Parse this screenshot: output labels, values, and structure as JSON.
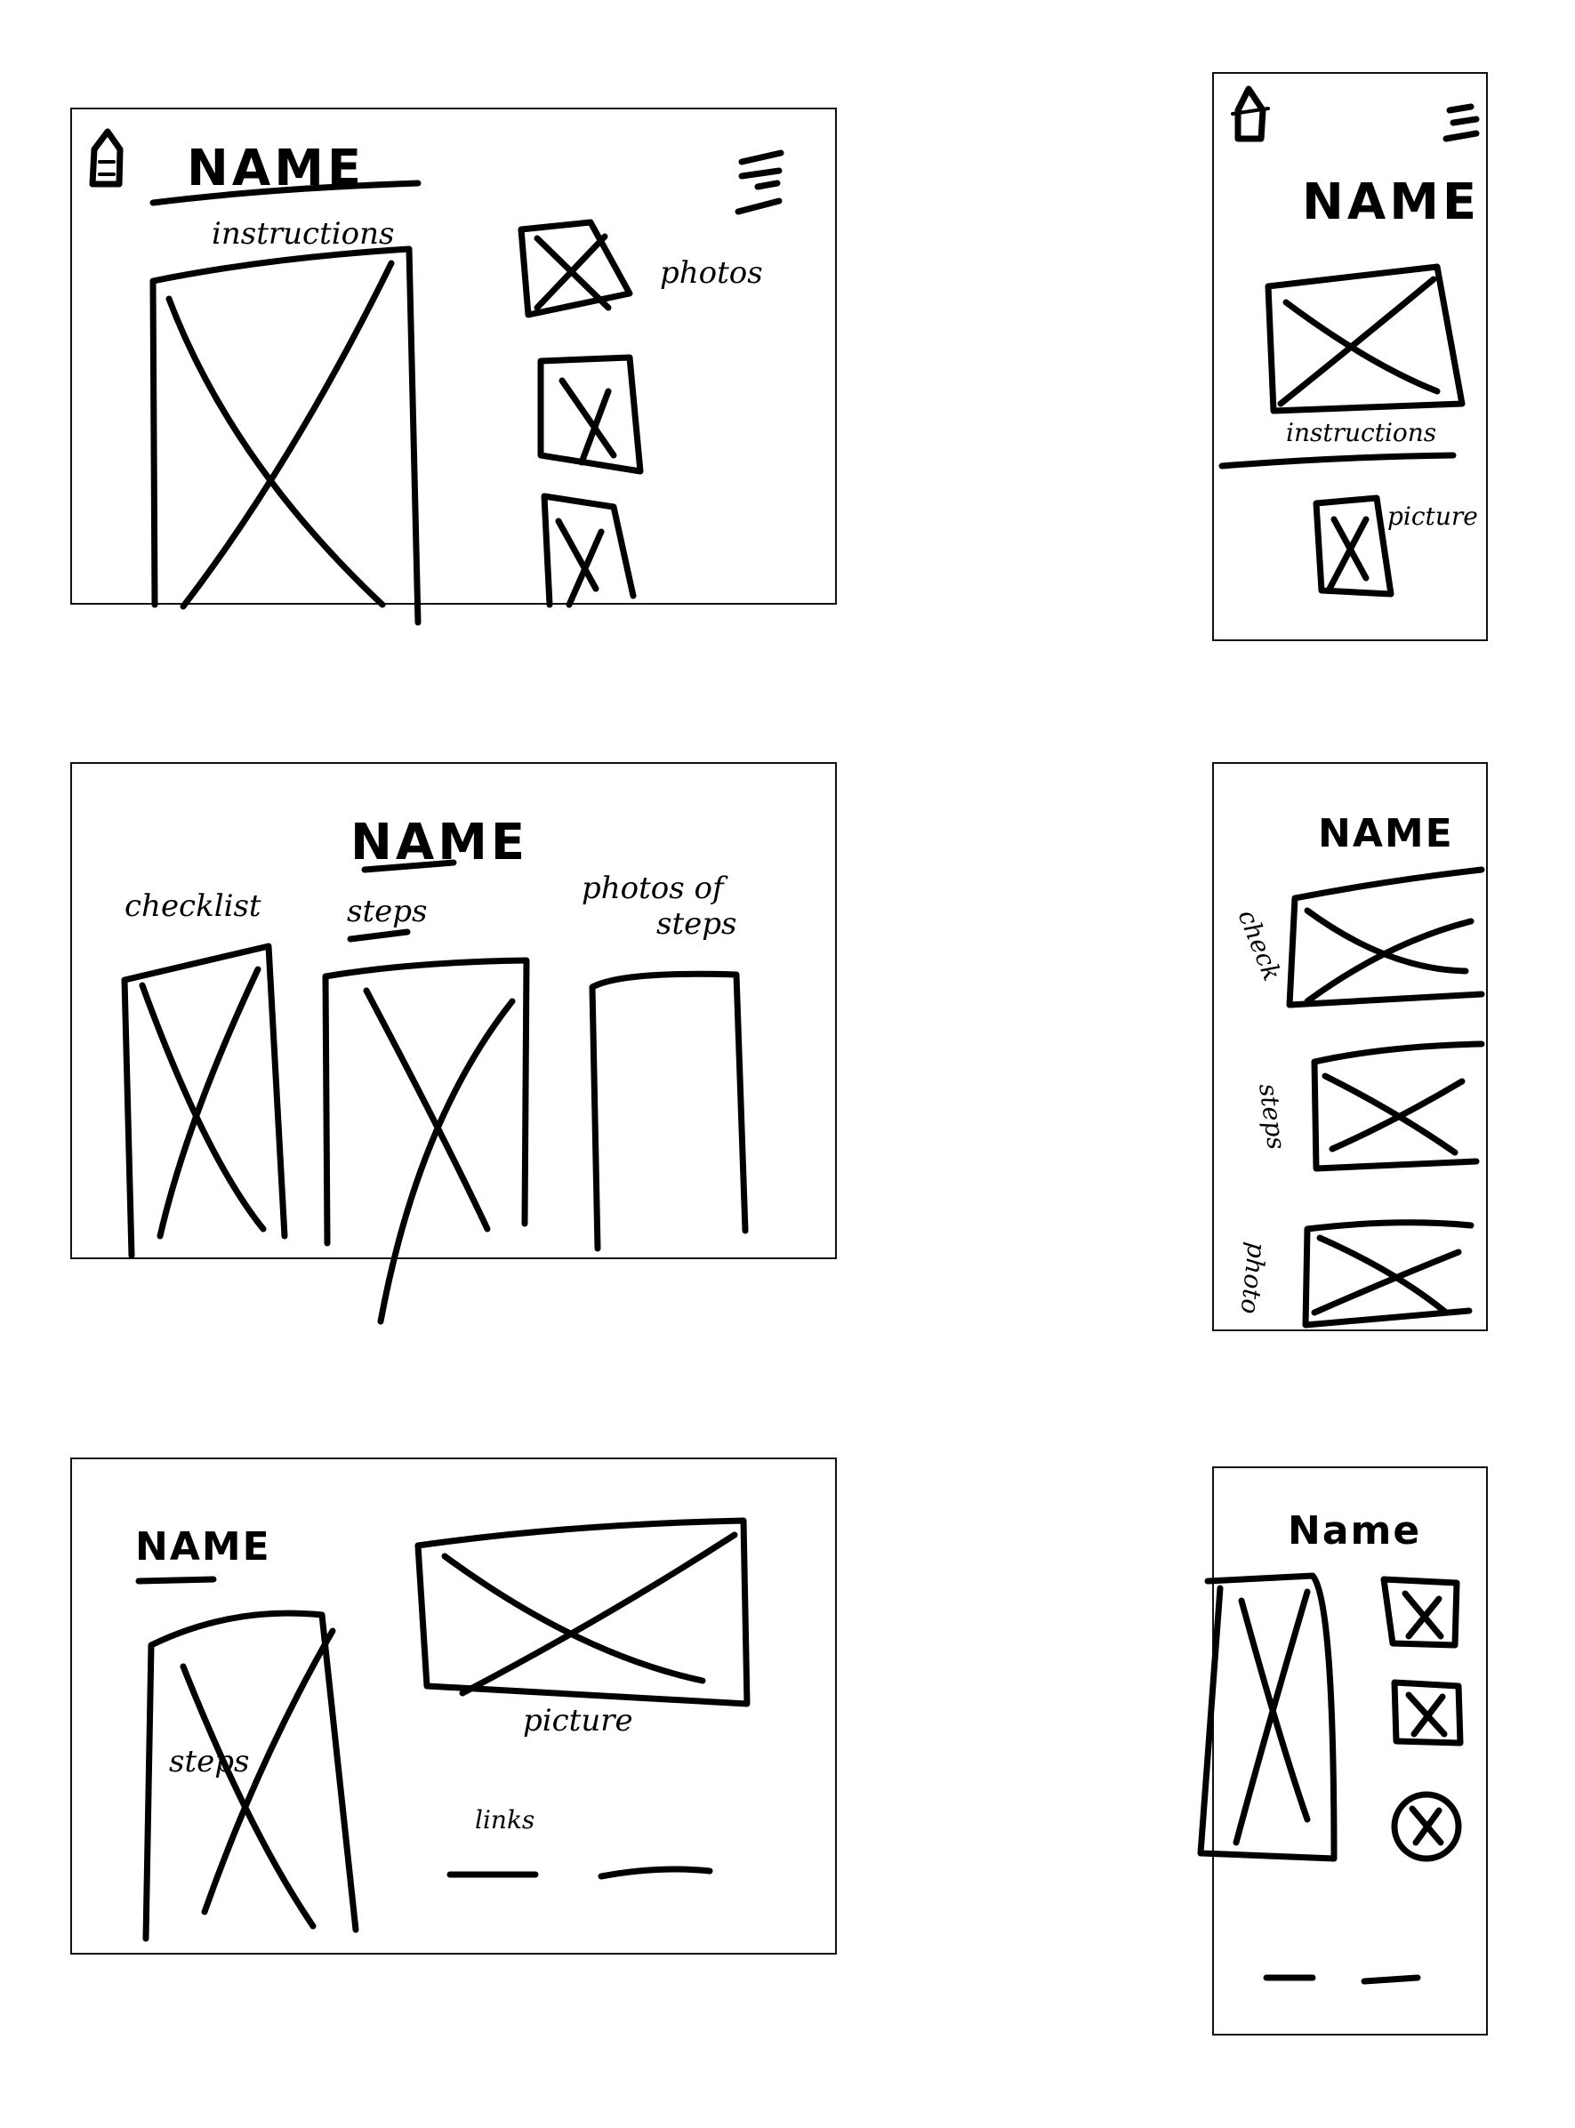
{
  "wireframes": {
    "desktop_1": {
      "title": "NAME",
      "instructions_label": "instructions",
      "photos_label": "photos"
    },
    "mobile_1": {
      "title": "NAME",
      "instructions_label": "instructions",
      "picture_label": "picture"
    },
    "desktop_2": {
      "title": "NAME",
      "checklist_label": "checklist",
      "steps_label": "steps",
      "photos_label_line1": "photos of",
      "photos_label_line2": "steps"
    },
    "mobile_2": {
      "title": "NAME",
      "check_label": "check",
      "steps_label": "steps",
      "photo_label": "photo"
    },
    "desktop_3": {
      "title": "NAME",
      "steps_label": "steps",
      "picture_label": "picture",
      "links_label": "links"
    },
    "mobile_3": {
      "title": "Name"
    }
  },
  "icons": [
    "home-icon",
    "hamburger-menu-icon",
    "image-placeholder-icon"
  ]
}
